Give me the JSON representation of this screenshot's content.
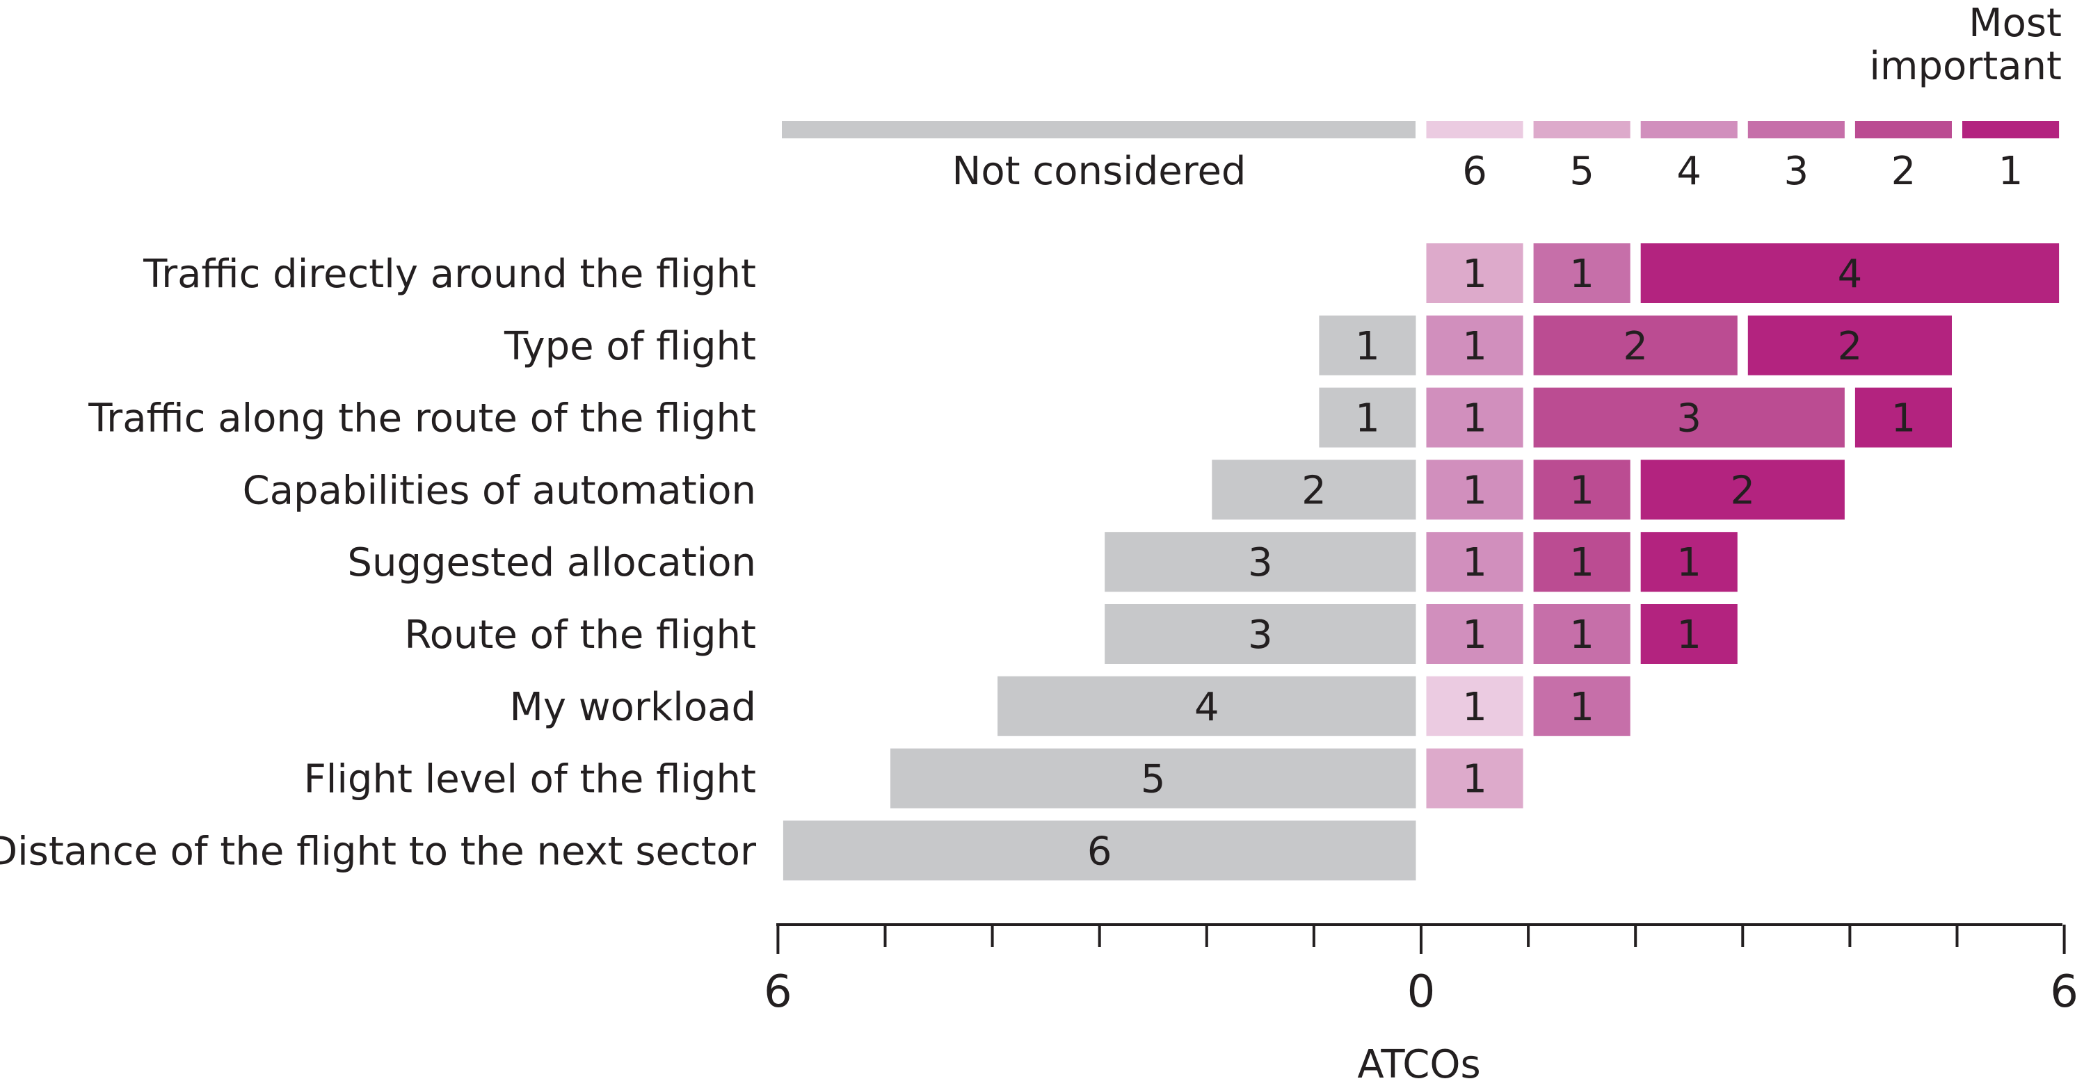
{
  "chart_data": {
    "type": "bar",
    "orientation": "horizontal",
    "stacked": "diverging",
    "title": "",
    "xlabel": "ATCOs",
    "ylabel": "",
    "xlim_left": 6,
    "xlim_right": 6,
    "x_tick_labels": [
      "6",
      "0",
      "6"
    ],
    "legend": {
      "header": "Most important",
      "not_considered_label": "Not considered",
      "rank_labels": [
        "6",
        "5",
        "4",
        "3",
        "2",
        "1"
      ]
    },
    "colors": {
      "not_considered": "#c7c8ca",
      "rank6": "#ebcbe1",
      "rank5": "#ddaacb",
      "rank4": "#d18fbd",
      "rank3": "#c66fa9",
      "rank2": "#bb4c92",
      "rank1": "#b3237f",
      "header_text": "#b3237f",
      "axis": "#231f20"
    },
    "categories": [
      "Traffic directly around the flight",
      "Type of flight",
      "Traffic along the route of the flight",
      "Capabilities of automation",
      "Suggested allocation",
      "Route of the flight",
      "My workload",
      "Flight level of the flight",
      "Distance of the flight to the next sector"
    ],
    "not_considered": [
      0,
      1,
      1,
      2,
      3,
      3,
      4,
      5,
      6
    ],
    "series": [
      {
        "name": "6",
        "values": [
          0,
          0,
          0,
          0,
          0,
          0,
          1,
          0,
          0
        ]
      },
      {
        "name": "5",
        "values": [
          1,
          0,
          0,
          0,
          0,
          0,
          0,
          1,
          0
        ]
      },
      {
        "name": "4",
        "values": [
          0,
          1,
          1,
          1,
          1,
          1,
          0,
          0,
          0
        ]
      },
      {
        "name": "3",
        "values": [
          1,
          0,
          0,
          0,
          0,
          1,
          1,
          0,
          0
        ]
      },
      {
        "name": "2",
        "values": [
          0,
          2,
          3,
          1,
          1,
          0,
          0,
          0,
          0
        ]
      },
      {
        "name": "1",
        "values": [
          4,
          2,
          1,
          2,
          1,
          1,
          0,
          0,
          0
        ]
      }
    ]
  }
}
